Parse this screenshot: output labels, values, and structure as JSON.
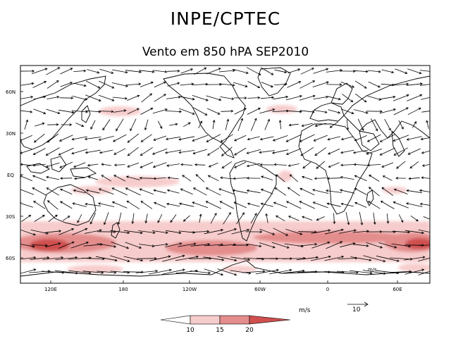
{
  "header": {
    "title": "INPE/CPTEC",
    "subtitle": "Vento em 850 hPA SEP2010"
  },
  "axes": {
    "lat_labels": [
      "60N",
      "30N",
      "EQ",
      "30S",
      "60S"
    ],
    "lon_labels": [
      "120E",
      "180",
      "120W",
      "60W",
      "0",
      "60E"
    ]
  },
  "map": {
    "lon_range": [
      90,
      432
    ],
    "lat_range": [
      -75,
      80
    ],
    "field": "wind vectors 850 hPa",
    "corner_label": "m/s"
  },
  "legend": {
    "units": "m/s",
    "reference_vector": "10",
    "levels": [
      "10",
      "15",
      "20"
    ],
    "colors": [
      "#ffffff",
      "#f7cccc",
      "#e48d8d",
      "#cf4f4f"
    ]
  },
  "colors": {
    "light": "#f7cccc",
    "medium": "#e48d8d",
    "strong": "#cf4f4f"
  }
}
